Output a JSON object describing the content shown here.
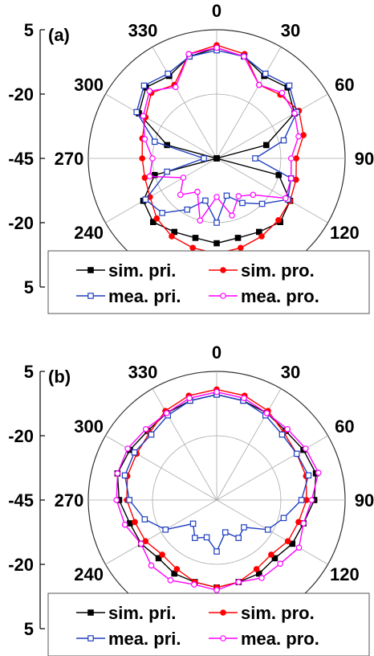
{
  "chart_data": [
    {
      "type": "polar",
      "panel_label": "(a)",
      "theta": [
        0,
        15,
        30,
        45,
        60,
        75,
        90,
        105,
        120,
        135,
        150,
        165,
        180,
        195,
        210,
        225,
        240,
        255,
        270,
        285,
        300,
        315,
        330,
        345
      ],
      "rlim": [
        -45,
        5
      ],
      "rticks": [
        -45,
        -20,
        5
      ],
      "thetaticks": [
        {
          "value": 0,
          "label": "0"
        },
        {
          "value": 30,
          "label": "30"
        },
        {
          "value": 60,
          "label": "60"
        },
        {
          "value": 90,
          "label": "90"
        },
        {
          "value": 120,
          "label": "120"
        },
        {
          "value": 240,
          "label": "240"
        },
        {
          "value": 270,
          "label": "270"
        },
        {
          "value": 300,
          "label": "300"
        },
        {
          "value": 330,
          "label": "330"
        }
      ],
      "grid": true,
      "series": [
        {
          "name": "sim. pri.",
          "color": "#000000",
          "marker": "square-filled",
          "values": [
            -2,
            -4,
            -8,
            -6,
            -10,
            -25,
            -45,
            -20,
            -12,
            -10,
            -12,
            -13,
            -12,
            -13,
            -12,
            -10,
            -12,
            -20,
            -45,
            -25,
            -10,
            -6,
            -8,
            -4
          ]
        },
        {
          "name": "sim. pro.",
          "color": "#ff0000",
          "marker": "circle-filled",
          "values": [
            -1,
            -3,
            -12,
            -10,
            -8,
            -10,
            -14,
            -13,
            -12,
            -11,
            -10,
            -9,
            -8,
            -9,
            -10,
            -12,
            -15,
            -16,
            -16,
            -15,
            -13,
            -9,
            -12,
            -3
          ]
        },
        {
          "name": "mea. pri.",
          "color": "#1f3fbf",
          "marker": "square-open",
          "values": [
            -3,
            -4,
            -7,
            -5,
            -9,
            -18,
            -30,
            -15,
            -13,
            -20,
            -25,
            -30,
            -20,
            -28,
            -22,
            -15,
            -13,
            -25,
            -40,
            -20,
            -9,
            -5,
            -7,
            -4
          ]
        },
        {
          "name": "mea. pro.",
          "color": "#ff00ff",
          "marker": "circle-open",
          "values": [
            -2,
            -4,
            -12,
            -9,
            -10,
            -12,
            -16,
            -15,
            -14,
            -25,
            -28,
            -22,
            -30,
            -20,
            -30,
            -25,
            -30,
            -18,
            -20,
            -16,
            -12,
            -8,
            -13,
            -3
          ]
        }
      ]
    },
    {
      "type": "polar",
      "panel_label": "(b)",
      "theta": [
        0,
        15,
        30,
        45,
        60,
        75,
        90,
        105,
        120,
        135,
        150,
        165,
        180,
        195,
        210,
        225,
        240,
        255,
        270,
        285,
        300,
        315,
        330,
        345
      ],
      "rlim": [
        -45,
        5
      ],
      "rticks": [
        -45,
        -20,
        5
      ],
      "thetaticks": [
        {
          "value": 0,
          "label": "0"
        },
        {
          "value": 30,
          "label": "30"
        },
        {
          "value": 60,
          "label": "60"
        },
        {
          "value": 90,
          "label": "90"
        },
        {
          "value": 120,
          "label": "120"
        },
        {
          "value": 240,
          "label": "240"
        },
        {
          "value": 270,
          "label": "270"
        },
        {
          "value": 300,
          "label": "300"
        },
        {
          "value": 330,
          "label": "330"
        }
      ],
      "grid": true,
      "series": [
        {
          "name": "sim. pri.",
          "color": "#000000",
          "marker": "square-filled",
          "values": [
            -4,
            -5,
            -6,
            -7,
            -6,
            -5,
            -7,
            -10,
            -11,
            -13,
            -12,
            -12,
            -11,
            -12,
            -12,
            -13,
            -11,
            -10,
            -7,
            -5,
            -6,
            -7,
            -6,
            -5
          ]
        },
        {
          "name": "sim. pro.",
          "color": "#ff0000",
          "marker": "circle-filled",
          "values": [
            -2,
            -3,
            -5,
            -8,
            -9,
            -9,
            -10,
            -12,
            -13,
            -15,
            -14,
            -12,
            -11,
            -12,
            -14,
            -15,
            -13,
            -12,
            -10,
            -9,
            -9,
            -8,
            -5,
            -3
          ]
        },
        {
          "name": "mea. pri.",
          "color": "#1f3fbf",
          "marker": "square-open",
          "values": [
            -4,
            -5,
            -7,
            -9,
            -9,
            -8,
            -12,
            -18,
            -22,
            -30,
            -28,
            -32,
            -25,
            -30,
            -28,
            -32,
            -22,
            -16,
            -11,
            -8,
            -8,
            -9,
            -7,
            -5
          ]
        },
        {
          "name": "mea. pro.",
          "color": "#ff00ff",
          "marker": "circle-open",
          "values": [
            -3,
            -4,
            -6,
            -6,
            -5,
            -4,
            -8,
            -10,
            -8,
            -10,
            -10,
            -12,
            -10,
            -11,
            -9,
            -9,
            -11,
            -8,
            -6,
            -5,
            -5,
            -6,
            -6,
            -4
          ]
        }
      ]
    }
  ]
}
